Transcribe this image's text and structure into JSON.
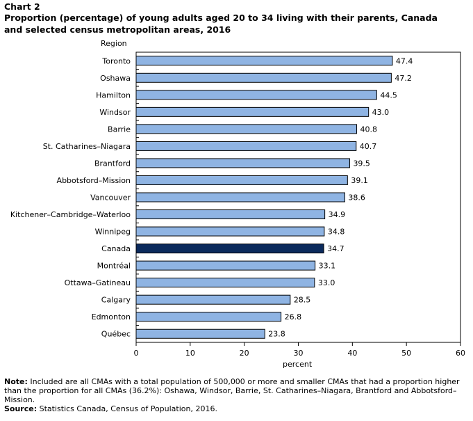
{
  "chart_label": "Chart 2",
  "chart_data": {
    "type": "bar",
    "orientation": "horizontal",
    "title": "Proportion (percentage) of young adults aged 20 to 34 living with their parents, Canada and selected census metropolitan areas, 2016",
    "ylabel": "Region",
    "xlabel": "percent",
    "xlim": [
      0,
      60
    ],
    "xticks": [
      0,
      10,
      20,
      30,
      40,
      50,
      60
    ],
    "categories": [
      "Toronto",
      "Oshawa",
      "Hamilton",
      "Windsor",
      "Barrie",
      "St. Catharines–Niagara",
      "Brantford",
      "Abbotsford–Mission",
      "Vancouver",
      "Kitchener–Cambridge–Waterloo",
      "Winnipeg",
      "Canada",
      "Montréal",
      "Ottawa–Gatineau",
      "Calgary",
      "Edmonton",
      "Québec"
    ],
    "values": [
      47.4,
      47.2,
      44.5,
      43.0,
      40.8,
      40.7,
      39.5,
      39.1,
      38.6,
      34.9,
      34.8,
      34.7,
      33.1,
      33.0,
      28.5,
      26.8,
      23.8
    ],
    "value_labels": [
      "47.4",
      "47.2",
      "44.5",
      "43.0",
      "40.8",
      "40.7",
      "39.5",
      "39.1",
      "38.6",
      "34.9",
      "34.8",
      "34.7",
      "33.1",
      "33.0",
      "28.5",
      "26.8",
      "23.8"
    ],
    "highlight_category": "Canada",
    "bar_color": "#8fb4e3",
    "highlight_color": "#0b2a5c",
    "grid": false
  },
  "note": {
    "label": "Note:",
    "text": "Included are all CMAs with a total population of 500,000 or more and smaller CMAs that had a proportion higher than the proportion for all CMAs (36.2%): Oshawa, Windsor, Barrie, St. Catharines–Niagara, Brantford and Abbotsford–Mission."
  },
  "source": {
    "label": "Source:",
    "text": "Statistics Canada, Census of Population, 2016."
  }
}
